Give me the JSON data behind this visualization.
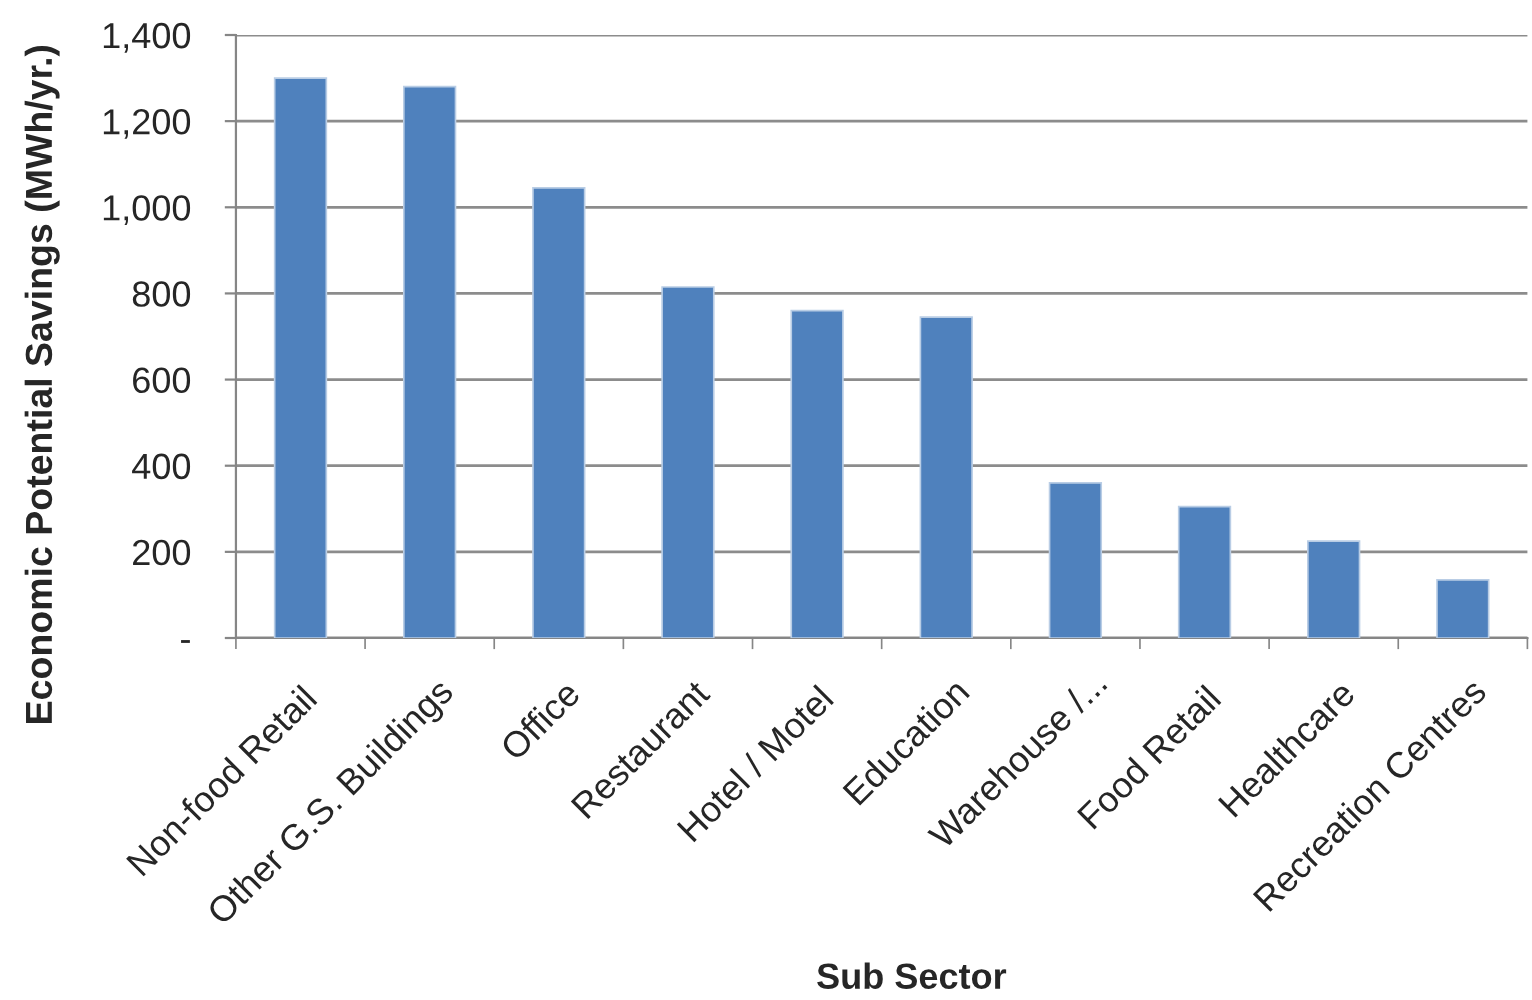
{
  "chart_data": {
    "type": "bar",
    "xlabel": "Sub Sector",
    "ylabel": "Economic Potential Savings (MWh/yr.)",
    "categories": [
      "Non-food Retail",
      "Other G.S. Buildings",
      "Office",
      "Restaurant",
      "Hotel / Motel",
      "Education",
      "Warehouse /...",
      "Food Retail",
      "Healthcare",
      "Recreation Centres"
    ],
    "values": [
      1300,
      1280,
      1045,
      815,
      760,
      745,
      360,
      305,
      225,
      135
    ],
    "color": "#4f81bd",
    "ylim": [
      0,
      1400
    ],
    "yticks": [
      {
        "value": 0,
        "label": "-"
      },
      200,
      400,
      600,
      800,
      {
        "value": 1000,
        "label": "1,000"
      },
      {
        "value": 1200,
        "label": "1,200"
      },
      {
        "value": 1400,
        "label": "1,400"
      }
    ],
    "grid": "y"
  }
}
